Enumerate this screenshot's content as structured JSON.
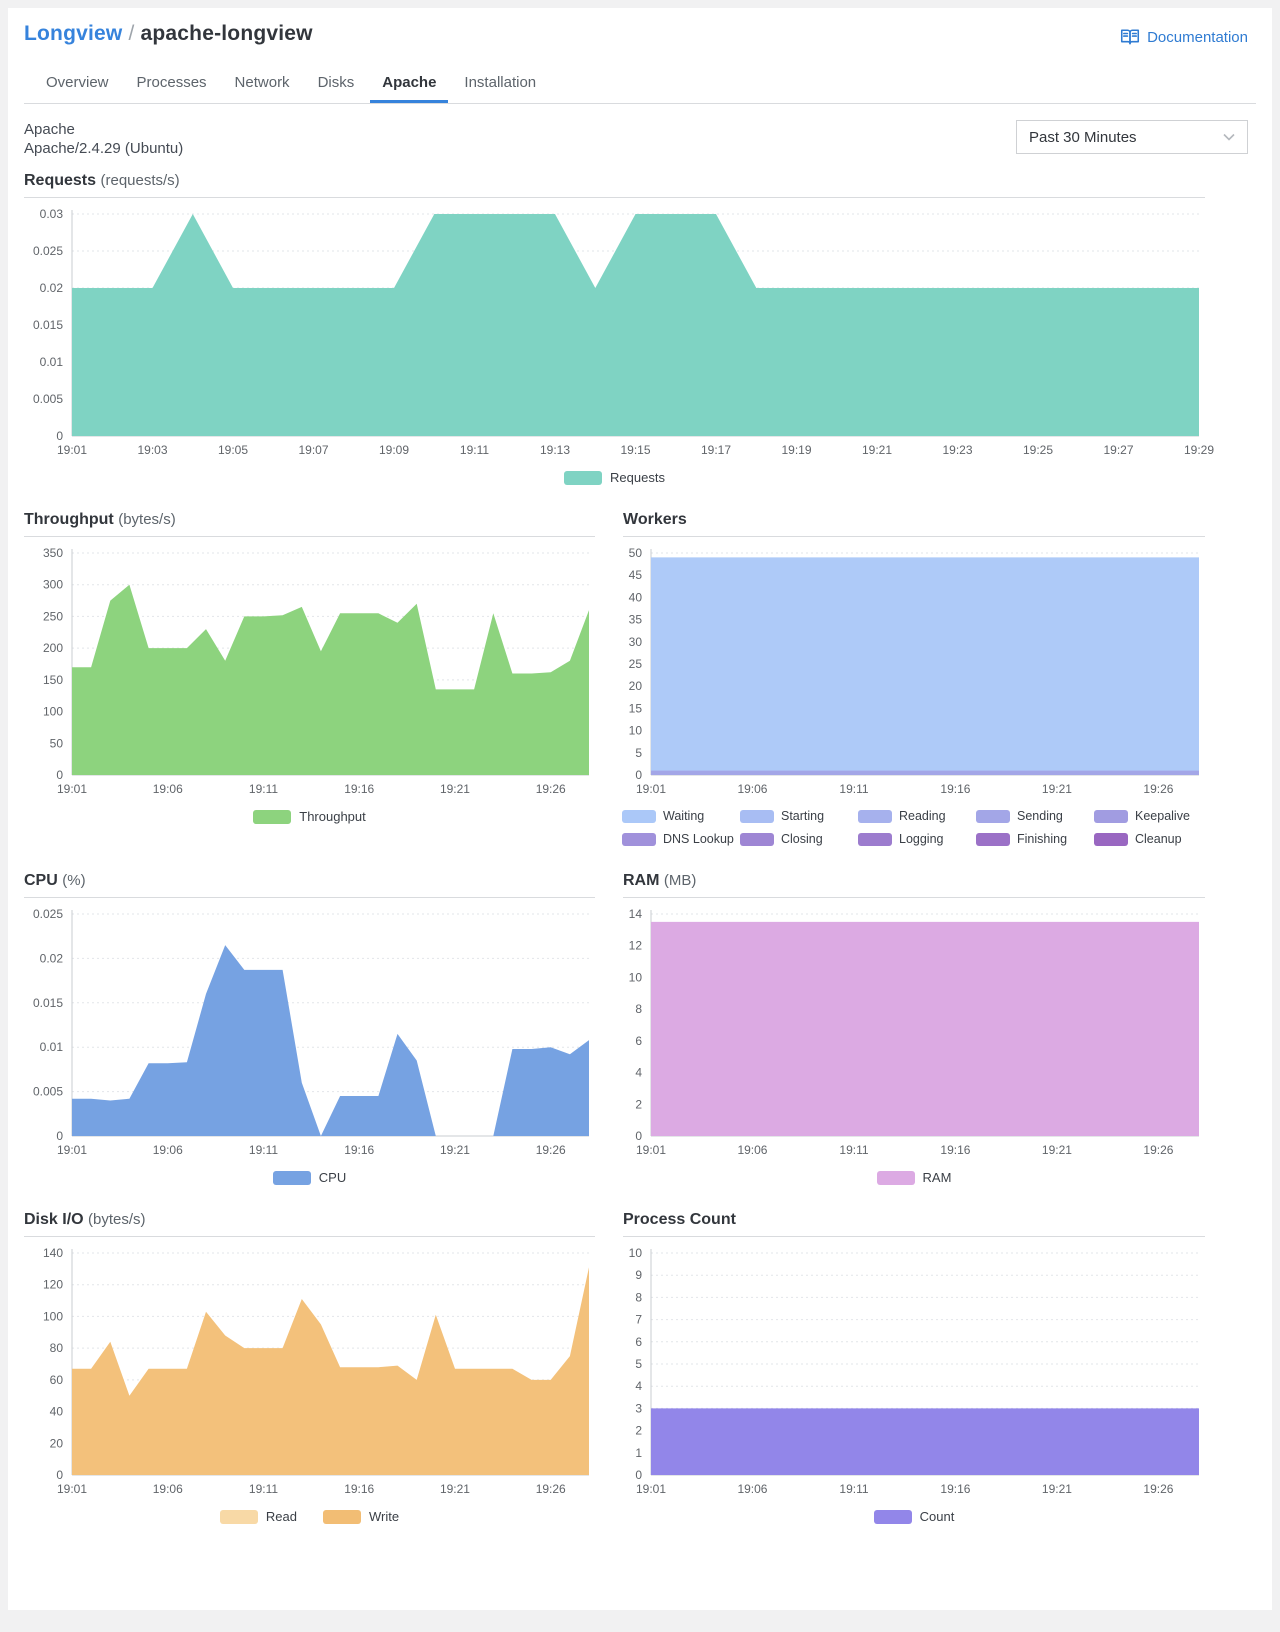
{
  "header": {
    "breadcrumb": {
      "parent": "Longview",
      "separator": "/",
      "current": "apache-longview"
    },
    "documentation_label": "Documentation"
  },
  "tabs": [
    {
      "label": "Overview"
    },
    {
      "label": "Processes"
    },
    {
      "label": "Network"
    },
    {
      "label": "Disks"
    },
    {
      "label": "Apache"
    },
    {
      "label": "Installation"
    }
  ],
  "active_tab": "Apache",
  "section": {
    "title": "Apache",
    "subtitle": "Apache/2.4.29 (Ubuntu)",
    "time_range": "Past 30 Minutes"
  },
  "chart_data": [
    {
      "id": "requests",
      "type": "area",
      "title": "Requests",
      "unit": "(requests/s)",
      "ylim": [
        0,
        0.03
      ],
      "yticks": [
        0,
        0.005,
        0.01,
        0.015,
        0.02,
        0.025,
        0.03
      ],
      "xmax": 28,
      "xticks": [
        {
          "m": 0,
          "label": "19:01"
        },
        {
          "m": 2,
          "label": "19:03"
        },
        {
          "m": 4,
          "label": "19:05"
        },
        {
          "m": 6,
          "label": "19:07"
        },
        {
          "m": 8,
          "label": "19:09"
        },
        {
          "m": 10,
          "label": "19:11"
        },
        {
          "m": 12,
          "label": "19:13"
        },
        {
          "m": 14,
          "label": "19:15"
        },
        {
          "m": 16,
          "label": "19:17"
        },
        {
          "m": 18,
          "label": "19:19"
        },
        {
          "m": 20,
          "label": "19:21"
        },
        {
          "m": 22,
          "label": "19:23"
        },
        {
          "m": 24,
          "label": "19:25"
        },
        {
          "m": 26,
          "label": "19:27"
        },
        {
          "m": 28,
          "label": "19:29"
        }
      ],
      "series": [
        {
          "name": "Requests",
          "color": "#7fd3c3",
          "values": [
            0.02,
            0.02,
            0.02,
            0.03,
            0.02,
            0.02,
            0.02,
            0.02,
            0.02,
            0.03,
            0.03,
            0.03,
            0.03,
            0.02,
            0.03,
            0.03,
            0.03,
            0.02,
            0.02,
            0.02,
            0.02,
            0.02,
            0.02,
            0.02,
            0.02,
            0.02,
            0.02,
            0.02,
            0.02
          ]
        }
      ],
      "legend": [
        {
          "label": "Requests",
          "color": "#7fd3c3"
        }
      ]
    },
    {
      "id": "throughput",
      "type": "area",
      "title": "Throughput",
      "unit": "(bytes/s)",
      "ylim": [
        0,
        350
      ],
      "yticks": [
        0,
        50,
        100,
        150,
        200,
        250,
        300,
        350
      ],
      "xmax": 27,
      "xticks": [
        {
          "m": 0,
          "label": "19:01"
        },
        {
          "m": 5,
          "label": "19:06"
        },
        {
          "m": 10,
          "label": "19:11"
        },
        {
          "m": 15,
          "label": "19:16"
        },
        {
          "m": 20,
          "label": "19:21"
        },
        {
          "m": 25,
          "label": "19:26"
        }
      ],
      "series": [
        {
          "name": "Throughput",
          "color": "#8dd37e",
          "values": [
            170,
            170,
            275,
            300,
            200,
            200,
            200,
            230,
            180,
            250,
            250,
            252,
            265,
            195,
            255,
            255,
            255,
            240,
            270,
            135,
            135,
            135,
            255,
            160,
            160,
            162,
            180,
            260
          ]
        }
      ],
      "legend": [
        {
          "label": "Throughput",
          "color": "#8dd37e"
        }
      ]
    },
    {
      "id": "workers",
      "type": "area",
      "title": "Workers",
      "unit": "",
      "ylim": [
        0,
        50
      ],
      "yticks": [
        0,
        5,
        10,
        15,
        20,
        25,
        30,
        35,
        40,
        45,
        50
      ],
      "xmax": 27,
      "xticks": [
        {
          "m": 0,
          "label": "19:01"
        },
        {
          "m": 5,
          "label": "19:06"
        },
        {
          "m": 10,
          "label": "19:11"
        },
        {
          "m": 15,
          "label": "19:16"
        },
        {
          "m": 20,
          "label": "19:21"
        },
        {
          "m": 25,
          "label": "19:26"
        }
      ],
      "series": [
        {
          "name": "Waiting",
          "color": "#aecaf8",
          "x": [
            0,
            27
          ],
          "values": [
            49,
            49
          ]
        },
        {
          "name": "Sending",
          "color": "#a3a6e7",
          "x": [
            0,
            27
          ],
          "values": [
            1,
            1
          ]
        }
      ],
      "legend": [
        {
          "label": "Waiting",
          "color": "#abc8f8"
        },
        {
          "label": "Starting",
          "color": "#a8bdf3"
        },
        {
          "label": "Reading",
          "color": "#a6b1ed"
        },
        {
          "label": "Sending",
          "color": "#a3a6e7"
        },
        {
          "label": "Keepalive",
          "color": "#a19ce1"
        },
        {
          "label": "DNS Lookup",
          "color": "#a091db"
        },
        {
          "label": "Closing",
          "color": "#9e86d4"
        },
        {
          "label": "Logging",
          "color": "#9c7cce"
        },
        {
          "label": "Finishing",
          "color": "#9b71c7"
        },
        {
          "label": "Cleanup",
          "color": "#9967c1"
        }
      ],
      "legend_columns": 5
    },
    {
      "id": "cpu",
      "type": "area",
      "title": "CPU",
      "unit": "(%)",
      "ylim": [
        0,
        0.025
      ],
      "yticks": [
        0,
        0.005,
        0.01,
        0.015,
        0.02,
        0.025
      ],
      "xmax": 27,
      "xticks": [
        {
          "m": 0,
          "label": "19:01"
        },
        {
          "m": 5,
          "label": "19:06"
        },
        {
          "m": 10,
          "label": "19:11"
        },
        {
          "m": 15,
          "label": "19:16"
        },
        {
          "m": 20,
          "label": "19:21"
        },
        {
          "m": 25,
          "label": "19:26"
        }
      ],
      "series": [
        {
          "name": "CPU",
          "color": "#76a2e2",
          "values": [
            0.0042,
            0.0042,
            0.004,
            0.0042,
            0.0082,
            0.0082,
            0.0083,
            0.016,
            0.0215,
            0.0187,
            0.0187,
            0.0187,
            0.006,
            0,
            0.0045,
            0.0045,
            0.0045,
            0.0115,
            0.0085,
            0,
            0,
            0,
            0,
            0.0098,
            0.0098,
            0.01,
            0.0092,
            0.0108
          ]
        }
      ],
      "legend": [
        {
          "label": "CPU",
          "color": "#76a2e2"
        }
      ]
    },
    {
      "id": "ram",
      "type": "area",
      "title": "RAM",
      "unit": "(MB)",
      "ylim": [
        0,
        14
      ],
      "yticks": [
        0,
        2,
        4,
        6,
        8,
        10,
        12,
        14
      ],
      "xmax": 27,
      "xticks": [
        {
          "m": 0,
          "label": "19:01"
        },
        {
          "m": 5,
          "label": "19:06"
        },
        {
          "m": 10,
          "label": "19:11"
        },
        {
          "m": 15,
          "label": "19:16"
        },
        {
          "m": 20,
          "label": "19:21"
        },
        {
          "m": 25,
          "label": "19:26"
        }
      ],
      "series": [
        {
          "name": "RAM",
          "color": "#dcaae3",
          "x": [
            0,
            27
          ],
          "values": [
            13.5,
            13.5
          ]
        }
      ],
      "legend": [
        {
          "label": "RAM",
          "color": "#dcaae3"
        }
      ]
    },
    {
      "id": "disk-io",
      "type": "area",
      "title": "Disk I/O",
      "unit": "(bytes/s)",
      "ylim": [
        0,
        140
      ],
      "yticks": [
        0,
        20,
        40,
        60,
        80,
        100,
        120,
        140
      ],
      "xmax": 27,
      "xticks": [
        {
          "m": 0,
          "label": "19:01"
        },
        {
          "m": 5,
          "label": "19:06"
        },
        {
          "m": 10,
          "label": "19:11"
        },
        {
          "m": 15,
          "label": "19:16"
        },
        {
          "m": 20,
          "label": "19:21"
        },
        {
          "m": 25,
          "label": "19:26"
        }
      ],
      "series": [
        {
          "name": "Write",
          "color": "#f3c17b",
          "values": [
            67,
            67,
            84,
            50,
            67,
            67,
            67,
            103,
            88,
            80,
            80,
            80,
            111,
            95,
            68,
            68,
            68,
            69,
            60,
            101,
            67,
            67,
            67,
            67,
            60,
            60,
            75,
            131
          ]
        }
      ],
      "legend": [
        {
          "label": "Read",
          "color": "#f8d9a6"
        },
        {
          "label": "Write",
          "color": "#f2bd74"
        }
      ]
    },
    {
      "id": "process-count",
      "type": "area",
      "title": "Process Count",
      "unit": "",
      "ylim": [
        0,
        10
      ],
      "yticks": [
        0,
        1,
        2,
        3,
        4,
        5,
        6,
        7,
        8,
        9,
        10
      ],
      "xmax": 27,
      "xticks": [
        {
          "m": 0,
          "label": "19:01"
        },
        {
          "m": 5,
          "label": "19:06"
        },
        {
          "m": 10,
          "label": "19:11"
        },
        {
          "m": 15,
          "label": "19:16"
        },
        {
          "m": 20,
          "label": "19:21"
        },
        {
          "m": 25,
          "label": "19:26"
        }
      ],
      "series": [
        {
          "name": "Count",
          "color": "#9286e9",
          "x": [
            0,
            27
          ],
          "values": [
            3,
            3
          ]
        }
      ],
      "legend": [
        {
          "label": "Count",
          "color": "#9286e9"
        }
      ]
    }
  ]
}
